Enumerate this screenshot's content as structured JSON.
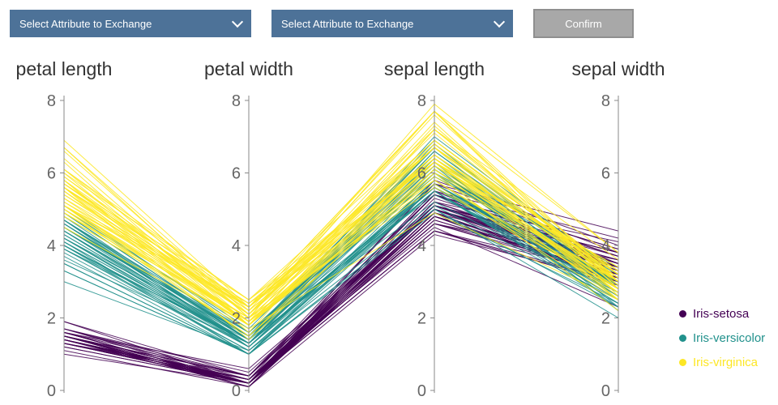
{
  "controls": {
    "select1": {
      "value": "Select Attribute to Exchange"
    },
    "select2": {
      "value": "Select Attribute to Exchange"
    },
    "confirm_label": "Confirm"
  },
  "chart_data": {
    "type": "parallel-coordinates",
    "axes": [
      "petal length",
      "petal width",
      "sepal length",
      "sepal width"
    ],
    "ylim": [
      0,
      8
    ],
    "ticks": [
      0,
      2,
      4,
      6,
      8
    ],
    "grid": false,
    "legend": {
      "position": "right",
      "entries": [
        {
          "label": "Iris-setosa",
          "color": "#440154"
        },
        {
          "label": "Iris-versicolor",
          "color": "#21918c"
        },
        {
          "label": "Iris-virginica",
          "color": "#fde725"
        }
      ]
    },
    "series": [
      {
        "name": "Iris-setosa",
        "color": "#440154",
        "rows": [
          [
            1.4,
            0.2,
            5.1,
            3.5
          ],
          [
            1.4,
            0.2,
            4.9,
            3.0
          ],
          [
            1.3,
            0.2,
            4.7,
            3.2
          ],
          [
            1.5,
            0.2,
            4.6,
            3.1
          ],
          [
            1.4,
            0.2,
            5.0,
            3.6
          ],
          [
            1.7,
            0.4,
            5.4,
            3.9
          ],
          [
            1.4,
            0.3,
            4.6,
            3.4
          ],
          [
            1.5,
            0.2,
            5.0,
            3.4
          ],
          [
            1.4,
            0.2,
            4.4,
            2.9
          ],
          [
            1.5,
            0.1,
            4.9,
            3.1
          ],
          [
            1.5,
            0.2,
            5.4,
            3.7
          ],
          [
            1.6,
            0.2,
            4.8,
            3.4
          ],
          [
            1.4,
            0.1,
            4.8,
            3.0
          ],
          [
            1.1,
            0.1,
            4.3,
            3.0
          ],
          [
            1.2,
            0.2,
            5.8,
            4.0
          ],
          [
            1.5,
            0.4,
            5.7,
            4.4
          ],
          [
            1.3,
            0.4,
            5.4,
            3.9
          ],
          [
            1.4,
            0.3,
            5.1,
            3.5
          ],
          [
            1.7,
            0.3,
            5.7,
            3.8
          ],
          [
            1.5,
            0.3,
            5.1,
            3.8
          ],
          [
            1.7,
            0.2,
            5.4,
            3.4
          ],
          [
            1.5,
            0.4,
            5.1,
            3.7
          ],
          [
            1.0,
            0.2,
            4.6,
            3.6
          ],
          [
            1.7,
            0.5,
            5.1,
            3.3
          ],
          [
            1.9,
            0.2,
            4.8,
            3.4
          ],
          [
            1.6,
            0.2,
            5.0,
            3.0
          ],
          [
            1.6,
            0.4,
            5.0,
            3.4
          ],
          [
            1.5,
            0.2,
            5.2,
            3.5
          ],
          [
            1.4,
            0.2,
            5.2,
            3.4
          ],
          [
            1.6,
            0.2,
            4.7,
            3.2
          ],
          [
            1.6,
            0.2,
            4.8,
            3.1
          ],
          [
            1.5,
            0.4,
            5.4,
            3.4
          ],
          [
            1.5,
            0.1,
            5.2,
            4.1
          ],
          [
            1.4,
            0.2,
            5.5,
            4.2
          ],
          [
            1.5,
            0.2,
            4.9,
            3.1
          ],
          [
            1.2,
            0.2,
            5.0,
            3.2
          ],
          [
            1.3,
            0.2,
            5.5,
            3.5
          ],
          [
            1.4,
            0.1,
            4.9,
            3.6
          ],
          [
            1.3,
            0.2,
            4.4,
            3.0
          ],
          [
            1.5,
            0.2,
            5.1,
            3.4
          ],
          [
            1.3,
            0.3,
            5.0,
            3.5
          ],
          [
            1.3,
            0.3,
            4.5,
            2.3
          ],
          [
            1.3,
            0.2,
            4.4,
            3.2
          ],
          [
            1.6,
            0.6,
            5.0,
            3.5
          ],
          [
            1.9,
            0.4,
            5.1,
            3.8
          ],
          [
            1.4,
            0.3,
            4.8,
            3.0
          ],
          [
            1.6,
            0.2,
            5.1,
            3.8
          ],
          [
            1.4,
            0.2,
            4.6,
            3.2
          ],
          [
            1.5,
            0.2,
            5.3,
            3.7
          ],
          [
            1.4,
            0.2,
            5.0,
            3.3
          ]
        ]
      },
      {
        "name": "Iris-versicolor",
        "color": "#21918c",
        "rows": [
          [
            4.7,
            1.4,
            7.0,
            3.2
          ],
          [
            4.5,
            1.5,
            6.4,
            3.2
          ],
          [
            4.9,
            1.5,
            6.9,
            3.1
          ],
          [
            4.0,
            1.3,
            5.5,
            2.3
          ],
          [
            4.6,
            1.5,
            6.5,
            2.8
          ],
          [
            4.5,
            1.3,
            5.7,
            2.8
          ],
          [
            4.7,
            1.6,
            6.3,
            3.3
          ],
          [
            3.3,
            1.0,
            4.9,
            2.4
          ],
          [
            4.6,
            1.3,
            6.6,
            2.9
          ],
          [
            3.9,
            1.4,
            5.2,
            2.7
          ],
          [
            3.5,
            1.0,
            5.0,
            2.0
          ],
          [
            4.2,
            1.5,
            5.9,
            3.0
          ],
          [
            4.0,
            1.0,
            6.0,
            2.2
          ],
          [
            4.7,
            1.4,
            6.1,
            2.9
          ],
          [
            3.6,
            1.3,
            5.6,
            2.9
          ],
          [
            4.4,
            1.4,
            6.7,
            3.1
          ],
          [
            4.5,
            1.5,
            5.6,
            3.0
          ],
          [
            4.1,
            1.0,
            5.8,
            2.7
          ],
          [
            4.5,
            1.5,
            6.2,
            2.2
          ],
          [
            3.9,
            1.1,
            5.6,
            2.5
          ],
          [
            4.8,
            1.8,
            5.9,
            3.2
          ],
          [
            4.0,
            1.3,
            6.1,
            2.8
          ],
          [
            4.9,
            1.5,
            6.3,
            2.5
          ],
          [
            4.7,
            1.2,
            6.1,
            2.8
          ],
          [
            4.3,
            1.3,
            6.4,
            2.9
          ],
          [
            4.4,
            1.4,
            6.6,
            3.0
          ],
          [
            4.8,
            1.4,
            6.8,
            2.8
          ],
          [
            5.0,
            1.7,
            6.7,
            3.0
          ],
          [
            4.5,
            1.5,
            6.0,
            2.9
          ],
          [
            3.5,
            1.0,
            5.7,
            2.6
          ],
          [
            3.8,
            1.1,
            5.5,
            2.4
          ],
          [
            3.7,
            1.0,
            5.5,
            2.4
          ],
          [
            3.9,
            1.2,
            5.8,
            2.7
          ],
          [
            5.1,
            1.6,
            6.0,
            2.7
          ],
          [
            4.5,
            1.5,
            5.4,
            3.0
          ],
          [
            4.5,
            1.6,
            6.0,
            3.4
          ],
          [
            4.7,
            1.5,
            6.7,
            3.1
          ],
          [
            4.4,
            1.3,
            6.3,
            2.3
          ],
          [
            4.1,
            1.3,
            5.6,
            3.0
          ],
          [
            4.0,
            1.3,
            5.5,
            2.5
          ],
          [
            4.4,
            1.2,
            5.5,
            2.6
          ],
          [
            4.6,
            1.4,
            6.1,
            3.0
          ],
          [
            4.0,
            1.2,
            5.8,
            2.6
          ],
          [
            3.3,
            1.0,
            5.0,
            2.3
          ],
          [
            4.2,
            1.3,
            5.6,
            2.7
          ],
          [
            4.2,
            1.2,
            5.7,
            3.0
          ],
          [
            4.2,
            1.3,
            5.7,
            2.9
          ],
          [
            4.3,
            1.3,
            6.2,
            2.9
          ],
          [
            3.0,
            1.1,
            5.1,
            2.5
          ],
          [
            4.1,
            1.3,
            5.7,
            2.8
          ]
        ]
      },
      {
        "name": "Iris-virginica",
        "color": "#fde725",
        "rows": [
          [
            6.0,
            2.5,
            6.3,
            3.3
          ],
          [
            5.1,
            1.9,
            5.8,
            2.7
          ],
          [
            5.9,
            2.1,
            7.1,
            3.0
          ],
          [
            5.6,
            1.8,
            6.3,
            2.9
          ],
          [
            5.8,
            2.2,
            6.5,
            3.0
          ],
          [
            6.6,
            2.1,
            7.6,
            3.0
          ],
          [
            4.5,
            1.7,
            4.9,
            2.5
          ],
          [
            6.3,
            1.8,
            7.3,
            2.9
          ],
          [
            5.8,
            1.8,
            6.7,
            2.5
          ],
          [
            6.1,
            2.5,
            7.2,
            3.6
          ],
          [
            5.1,
            2.0,
            6.5,
            3.2
          ],
          [
            5.3,
            1.9,
            6.4,
            2.7
          ],
          [
            5.5,
            2.1,
            6.8,
            3.0
          ],
          [
            5.0,
            2.0,
            5.7,
            2.5
          ],
          [
            5.1,
            2.4,
            5.8,
            2.8
          ],
          [
            5.3,
            2.3,
            6.4,
            3.2
          ],
          [
            5.5,
            1.8,
            6.5,
            3.0
          ],
          [
            6.7,
            2.2,
            7.7,
            3.8
          ],
          [
            6.9,
            2.3,
            7.7,
            2.6
          ],
          [
            5.0,
            1.5,
            6.0,
            2.2
          ],
          [
            5.7,
            2.3,
            6.9,
            3.2
          ],
          [
            4.9,
            2.0,
            5.6,
            2.8
          ],
          [
            6.7,
            2.0,
            7.7,
            2.8
          ],
          [
            4.9,
            1.8,
            6.3,
            2.7
          ],
          [
            5.7,
            2.1,
            6.7,
            3.3
          ],
          [
            6.0,
            1.8,
            7.2,
            3.2
          ],
          [
            4.8,
            1.8,
            6.2,
            2.8
          ],
          [
            4.9,
            1.8,
            6.1,
            3.0
          ],
          [
            5.6,
            2.1,
            6.4,
            2.8
          ],
          [
            5.8,
            1.6,
            7.2,
            3.0
          ],
          [
            6.1,
            1.9,
            7.4,
            2.8
          ],
          [
            6.4,
            2.0,
            7.9,
            3.8
          ],
          [
            5.6,
            2.2,
            6.4,
            2.8
          ],
          [
            5.1,
            1.5,
            6.3,
            2.8
          ],
          [
            5.6,
            1.4,
            6.1,
            2.6
          ],
          [
            6.1,
            2.3,
            7.7,
            3.0
          ],
          [
            5.6,
            2.4,
            6.3,
            3.4
          ],
          [
            5.5,
            1.8,
            6.4,
            3.1
          ],
          [
            4.8,
            1.8,
            6.0,
            3.0
          ],
          [
            5.4,
            2.1,
            6.9,
            3.1
          ],
          [
            5.6,
            2.4,
            6.7,
            3.1
          ],
          [
            5.1,
            2.3,
            6.9,
            3.1
          ],
          [
            5.1,
            1.9,
            5.8,
            2.7
          ],
          [
            5.9,
            2.3,
            6.8,
            3.2
          ],
          [
            5.7,
            2.5,
            6.7,
            3.3
          ],
          [
            5.2,
            2.3,
            6.7,
            3.0
          ],
          [
            5.0,
            1.9,
            6.3,
            2.5
          ],
          [
            5.2,
            2.0,
            6.5,
            3.0
          ],
          [
            5.4,
            2.3,
            6.2,
            3.4
          ],
          [
            5.1,
            1.8,
            5.9,
            3.0
          ]
        ]
      }
    ]
  }
}
